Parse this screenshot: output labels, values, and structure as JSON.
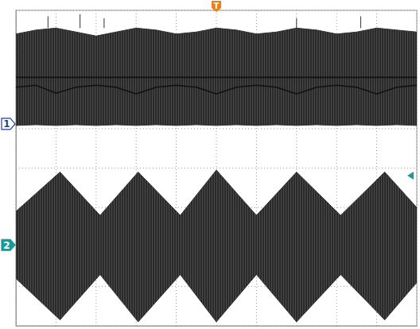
{
  "chart_data": {
    "type": "area",
    "xlim": [
      0,
      10
    ],
    "ylim": [
      -4,
      4
    ],
    "xticks": [
      0,
      1,
      2,
      3,
      4,
      5,
      6,
      7,
      8,
      9,
      10
    ],
    "yticks": [
      -4,
      -3,
      -2,
      -1,
      0,
      1,
      2,
      3,
      4
    ],
    "grid": true,
    "tick_labels": false,
    "trigger_level": -0.19,
    "annotations": [
      {
        "text": "T",
        "x": 5
      }
    ],
    "series": [
      {
        "name": "1",
        "color": "#333333",
        "level": 1.12,
        "x": [
          0,
          0.5,
          1,
          1.5,
          2,
          2.5,
          3,
          3.5,
          4,
          4.5,
          5,
          5.5,
          6,
          6.5,
          7,
          7.5,
          8,
          8.5,
          9,
          9.5,
          10
        ],
        "upper": [
          3.4,
          3.5,
          3.55,
          3.45,
          3.35,
          3.45,
          3.55,
          3.5,
          3.4,
          3.45,
          3.55,
          3.5,
          3.4,
          3.45,
          3.55,
          3.5,
          3.4,
          3.45,
          3.55,
          3.5,
          3.45
        ],
        "lower": [
          1.08,
          1.1,
          1.08,
          1.1,
          1.08,
          1.1,
          1.08,
          1.1,
          1.08,
          1.1,
          1.08,
          1.1,
          1.08,
          1.1,
          1.08,
          1.1,
          1.08,
          1.1,
          1.08,
          1.1,
          1.08
        ],
        "inner": [
          [
            2.3,
            2.3,
            2.3,
            2.3,
            2.3,
            2.3,
            2.3,
            2.3,
            2.3,
            2.3,
            2.3,
            2.3,
            2.3,
            2.3,
            2.3,
            2.3,
            2.3,
            2.3,
            2.3,
            2.3,
            2.3
          ],
          [
            2.05,
            2.1,
            1.9,
            2.05,
            2.1,
            2.05,
            1.88,
            2.05,
            2.1,
            2.05,
            1.88,
            2.05,
            2.1,
            2.05,
            1.88,
            2.05,
            2.1,
            2.05,
            1.88,
            2.05,
            2.1
          ]
        ],
        "spikes_x": [
          0.8,
          1.6,
          2.2,
          7.0,
          8.6
        ],
        "spikes_y": [
          3.85,
          3.9,
          3.8,
          3.8,
          3.85
        ]
      },
      {
        "name": "2",
        "color": "#333333",
        "level": -1.95,
        "x": [
          0,
          1.1,
          2.1,
          3.05,
          4.1,
          5.0,
          6.0,
          7.0,
          8.1,
          9.2,
          10
        ],
        "upper": [
          -1.1,
          -0.1,
          -1.2,
          -0.1,
          -1.2,
          -0.05,
          -1.2,
          -0.1,
          -1.2,
          -0.1,
          -1.0
        ],
        "lower": [
          -2.8,
          -3.85,
          -2.7,
          -3.9,
          -2.7,
          -3.9,
          -2.7,
          -3.9,
          -2.7,
          -3.85,
          -2.9
        ]
      }
    ]
  }
}
